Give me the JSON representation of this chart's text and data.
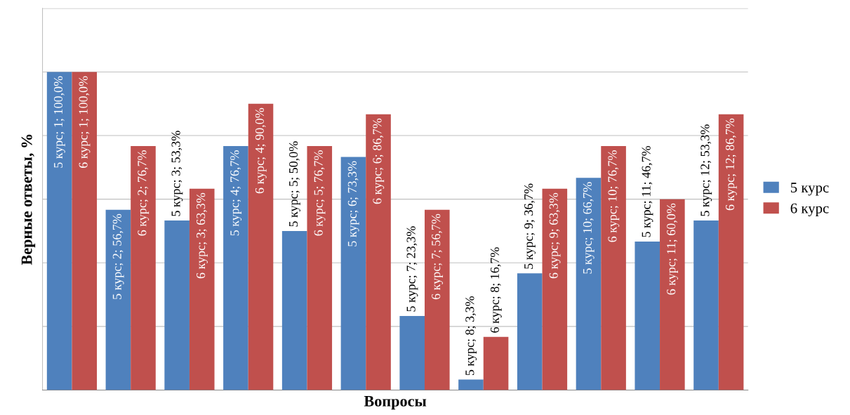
{
  "chart_data": {
    "type": "bar",
    "xlabel": "Вопросы",
    "ylabel": "Верные ответы, %",
    "categories": [
      null,
      null,
      null,
      null,
      null,
      null,
      null,
      null,
      null,
      null,
      null,
      null
    ],
    "series": [
      {
        "name": "5 курс",
        "color": "#4f81bd",
        "values": [
          100.0,
          56.7,
          53.3,
          76.7,
          50.0,
          73.3,
          23.3,
          3.3,
          36.7,
          66.7,
          46.7,
          53.3
        ],
        "value_labels": [
          "5 курс; 1; 100,0%",
          "5 курс; 2; 56,7%",
          "5 курс; 3; 53,3%",
          "5 курс; 4; 76,7%",
          "5 курс; 5; 50,0%",
          "5 курс; 6; 73,3%",
          "5 курс; 7; 23,3%",
          "5 курс; 8; 3,3%",
          "5 курс; 9; 36,7%",
          "5 курс; 10; 66,7%",
          "5 курс; 11; 46,7%",
          "5 курс; 12; 53,3%"
        ]
      },
      {
        "name": "6 курс",
        "color": "#c0504d",
        "values": [
          100.0,
          76.7,
          63.3,
          90.0,
          76.7,
          86.7,
          56.7,
          16.7,
          63.3,
          76.7,
          60.0,
          86.7
        ],
        "value_labels": [
          "6 курс; 1; 100,0%",
          "6 курс; 2; 76,7%",
          "6 курс; 3; 63,3%",
          "6 курс; 4; 90,0%",
          "6 курс; 5; 76,7%",
          "6 курс; 6; 86,7%",
          "6 курс; 7; 56,7%",
          "6 курс; 8; 16,7%",
          "6 курс; 9; 63,3%",
          "6 курс; 10; 76,7%",
          "6 курс; 11; 60,0%",
          "6 курс; 12; 86,7%"
        ]
      }
    ],
    "ylim": [
      0,
      120
    ],
    "yticks": [
      {
        "value": 0,
        "label": null
      },
      {
        "value": 20,
        "label": null
      },
      {
        "value": 40,
        "label": null
      },
      {
        "value": 60,
        "label": null
      },
      {
        "value": 80,
        "label": null
      },
      {
        "value": 100,
        "label": null
      },
      {
        "value": 120,
        "label": null
      }
    ],
    "grid": "y",
    "legend": "right"
  }
}
